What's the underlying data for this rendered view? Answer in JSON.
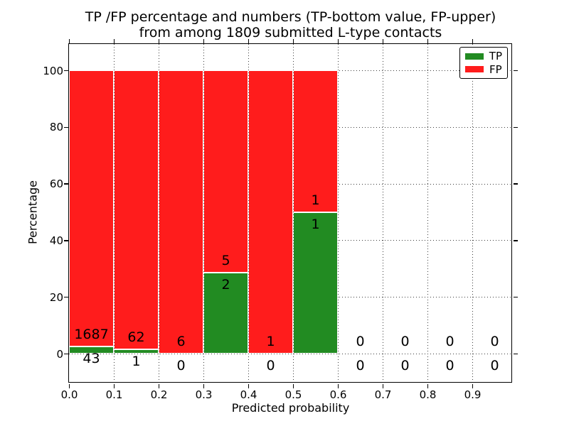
{
  "chart_data": {
    "type": "bar",
    "stacked": true,
    "title_line1": "TP /FP percentage and numbers (TP-bottom value, FP-upper)",
    "title_line2": "from among 1809 submitted L-type contacts",
    "total_submitted": 1809,
    "xlabel": "Predicted probability",
    "ylabel": "Percentage",
    "x_tick_labels": [
      "0.0",
      "0.1",
      "0.2",
      "0.3",
      "0.4",
      "0.5",
      "0.6",
      "0.7",
      "0.8",
      "0.9"
    ],
    "y_tick_labels": [
      "0",
      "20",
      "40",
      "60",
      "80",
      "100"
    ],
    "xlim": [
      0.0,
      0.99
    ],
    "ylim": [
      -10,
      110
    ],
    "grid": true,
    "bar_bin_width": 0.1,
    "bins": [
      {
        "x_start": 0.0,
        "x_end": 0.1,
        "tp": 43,
        "fp": 1687
      },
      {
        "x_start": 0.1,
        "x_end": 0.2,
        "tp": 1,
        "fp": 62
      },
      {
        "x_start": 0.2,
        "x_end": 0.3,
        "tp": 0,
        "fp": 6
      },
      {
        "x_start": 0.3,
        "x_end": 0.4,
        "tp": 2,
        "fp": 5
      },
      {
        "x_start": 0.4,
        "x_end": 0.5,
        "tp": 0,
        "fp": 1
      },
      {
        "x_start": 0.5,
        "x_end": 0.6,
        "tp": 1,
        "fp": 1
      },
      {
        "x_start": 0.6,
        "x_end": 0.7,
        "tp": 0,
        "fp": 0
      },
      {
        "x_start": 0.7,
        "x_end": 0.8,
        "tp": 0,
        "fp": 0
      },
      {
        "x_start": 0.8,
        "x_end": 0.9,
        "tp": 0,
        "fp": 0
      },
      {
        "x_start": 0.9,
        "x_end": 1.0,
        "tp": 0,
        "fp": 0
      }
    ],
    "colors": {
      "tp": "#228b22",
      "fp": "#ff1c1c",
      "grid": "#3c3c3c",
      "bar_edge": "#ffffff"
    },
    "legend": {
      "position": "upper right",
      "entries": [
        {
          "label": "TP",
          "color": "#228b22"
        },
        {
          "label": "FP",
          "color": "#ff1c1c"
        }
      ]
    }
  }
}
